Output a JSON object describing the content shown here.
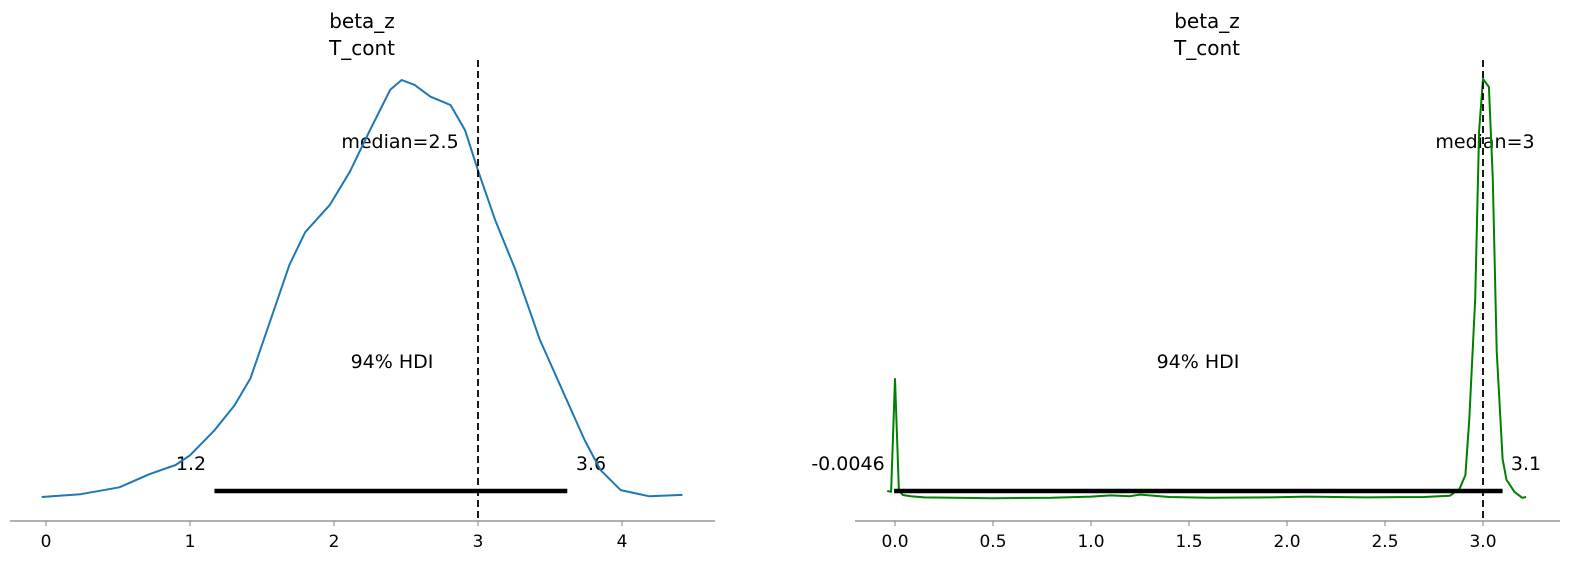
{
  "chart_data": [
    {
      "type": "area",
      "title": [
        "beta_z",
        "T_cont"
      ],
      "line_color": "#1f77b4",
      "xticks": [
        0,
        1,
        2,
        3,
        4
      ],
      "tick_labels": [
        "0",
        "1",
        "2",
        "3",
        "4"
      ],
      "xlim": [
        -0.25,
        4.65
      ],
      "grid": false,
      "point_estimate": {
        "label": "median=2.5",
        "value": 2.5
      },
      "reference_line": 3,
      "hdi": {
        "label": "94% HDI",
        "low": 1.17,
        "high": 3.62,
        "low_label": "1.2",
        "high_label": "3.6"
      },
      "density": {
        "x": [
          -0.03,
          0.24,
          0.51,
          0.72,
          0.9,
          1.0,
          1.17,
          1.31,
          1.42,
          1.56,
          1.69,
          1.8,
          1.97,
          2.11,
          2.25,
          2.39,
          2.47,
          2.56,
          2.67,
          2.81,
          2.91,
          3.0,
          3.12,
          3.26,
          3.43,
          3.6,
          3.74,
          3.85,
          3.99,
          4.19,
          4.42
        ],
        "y": [
          0,
          0.004,
          0.014,
          0.033,
          0.046,
          0.06,
          0.096,
          0.132,
          0.171,
          0.255,
          0.334,
          0.381,
          0.42,
          0.468,
          0.528,
          0.586,
          0.6,
          0.593,
          0.576,
          0.564,
          0.528,
          0.47,
          0.398,
          0.327,
          0.226,
          0.147,
          0.082,
          0.039,
          0.01,
          0.001,
          0.003
        ]
      }
    },
    {
      "type": "area",
      "title": [
        "beta_z",
        "T_cont"
      ],
      "line_color": "#008000",
      "xticks": [
        0,
        0.5,
        1,
        1.5,
        2,
        2.5,
        3
      ],
      "tick_labels": [
        "0.0",
        "0.5",
        "1.0",
        "1.5",
        "2.0",
        "2.5",
        "3.0"
      ],
      "xlim": [
        -0.2,
        3.4
      ],
      "grid": false,
      "point_estimate": {
        "label": "median=3",
        "value": 3
      },
      "reference_line": 3,
      "hdi": {
        "label": "94% HDI",
        "low": -0.0046,
        "high": 3.1,
        "low_label": "-0.0046",
        "high_label": "3.1"
      },
      "density": {
        "x": [
          -0.04,
          -0.02,
          0,
          0.02,
          0.04,
          0.08,
          0.15,
          0.3,
          0.5,
          0.8,
          1.0,
          1.1,
          1.2,
          1.25,
          1.4,
          1.6,
          1.9,
          2.1,
          2.4,
          2.7,
          2.83,
          2.88,
          2.91,
          2.93,
          2.96,
          2.98,
          3.0,
          3.03,
          3.05,
          3.07,
          3.1,
          3.12,
          3.16,
          3.2,
          3.22
        ],
        "y": [
          0.2,
          0.18,
          3.0,
          0.22,
          0.1,
          0.07,
          0.04,
          0.03,
          0.02,
          0.03,
          0.06,
          0.09,
          0.07,
          0.11,
          0.05,
          0.03,
          0.04,
          0.06,
          0.04,
          0.05,
          0.08,
          0.25,
          0.6,
          2.0,
          5.0,
          9.2,
          10.5,
          10.3,
          8.0,
          3.7,
          1.0,
          0.48,
          0.18,
          0.03,
          0.05
        ]
      }
    }
  ]
}
